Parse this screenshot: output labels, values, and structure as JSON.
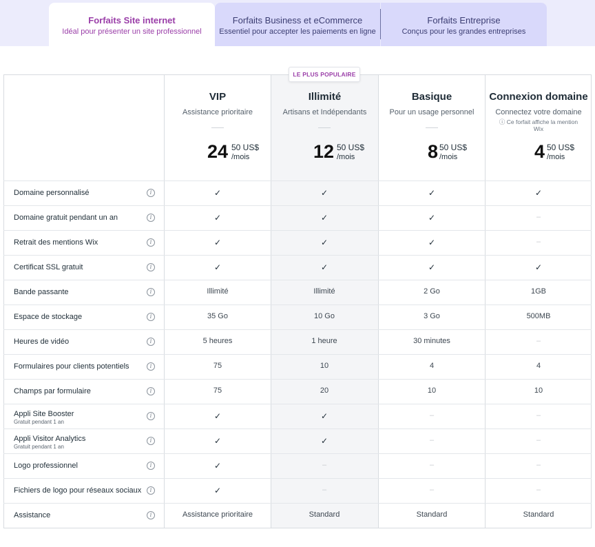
{
  "tabs": [
    {
      "title": "Forfaits Site internet",
      "subtitle": "Idéal pour présenter un site professionnel"
    },
    {
      "title": "Forfaits Business et eCommerce",
      "subtitle": "Essentiel pour accepter les paiements en ligne"
    },
    {
      "title": "Forfaits Entreprise",
      "subtitle": "Conçus pour les grandes entreprises"
    }
  ],
  "popular_badge": "LE PLUS POPULAIRE",
  "plans": [
    {
      "name": "VIP",
      "description": "Assistance prioritaire",
      "note": "",
      "price_whole": "24",
      "price_cents": "50 US$",
      "price_period": "/mois"
    },
    {
      "name": "Illimité",
      "description": "Artisans et Indépendants",
      "note": "",
      "price_whole": "12",
      "price_cents": "50 US$",
      "price_period": "/mois"
    },
    {
      "name": "Basique",
      "description": "Pour un usage personnel",
      "note": "",
      "price_whole": "8",
      "price_cents": "50 US$",
      "price_period": "/mois"
    },
    {
      "name": "Connexion domaine",
      "description": "Connectez votre domaine",
      "note": "ⓘ Ce forfait affiche la mention Wix",
      "price_whole": "4",
      "price_cents": "50 US$",
      "price_period": "/mois"
    }
  ],
  "features": [
    {
      "label": "Domaine personnalisé",
      "sub": "",
      "values": [
        "✓",
        "✓",
        "✓",
        "✓"
      ]
    },
    {
      "label": "Domaine gratuit pendant un an",
      "sub": "",
      "values": [
        "✓",
        "✓",
        "✓",
        "–"
      ]
    },
    {
      "label": "Retrait des mentions Wix",
      "sub": "",
      "values": [
        "✓",
        "✓",
        "✓",
        "–"
      ]
    },
    {
      "label": "Certificat SSL gratuit",
      "sub": "",
      "values": [
        "✓",
        "✓",
        "✓",
        "✓"
      ]
    },
    {
      "label": "Bande passante",
      "sub": "",
      "values": [
        "Illimité",
        "Illimité",
        "2 Go",
        "1GB"
      ]
    },
    {
      "label": "Espace de stockage",
      "sub": "",
      "values": [
        "35 Go",
        "10 Go",
        "3 Go",
        "500MB"
      ]
    },
    {
      "label": "Heures de vidéo",
      "sub": "",
      "values": [
        "5 heures",
        "1 heure",
        "30 minutes",
        "–"
      ]
    },
    {
      "label": "Formulaires pour clients potentiels",
      "sub": "",
      "values": [
        "75",
        "10",
        "4",
        "4"
      ]
    },
    {
      "label": "Champs par formulaire",
      "sub": "",
      "values": [
        "75",
        "20",
        "10",
        "10"
      ]
    },
    {
      "label": "Appli Site Booster",
      "sub": "Gratuit pendant 1 an",
      "values": [
        "✓",
        "✓",
        "–",
        "–"
      ]
    },
    {
      "label": "Appli Visitor Analytics",
      "sub": "Gratuit pendant 1 an",
      "values": [
        "✓",
        "✓",
        "–",
        "–"
      ]
    },
    {
      "label": "Logo professionnel",
      "sub": "",
      "values": [
        "✓",
        "–",
        "–",
        "–"
      ]
    },
    {
      "label": "Fichiers de logo pour réseaux sociaux",
      "sub": "",
      "values": [
        "✓",
        "–",
        "–",
        "–"
      ]
    },
    {
      "label": "Assistance",
      "sub": "",
      "values": [
        "Assistance prioritaire",
        "Standard",
        "Standard",
        "Standard"
      ]
    }
  ],
  "icons": {
    "info": "info-circle-icon",
    "check": "checkmark-icon",
    "dash": "dash-icon"
  },
  "colors": {
    "accent": "#9a3ea8",
    "tab_band": "#ececfc",
    "tab_inactive": "#d9d9fb",
    "popular_column": "#f4f5f7"
  }
}
